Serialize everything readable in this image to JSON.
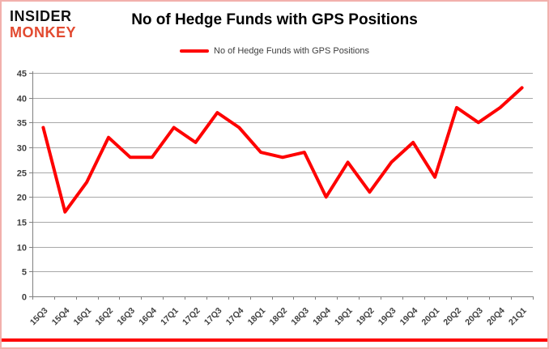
{
  "header": {
    "logo_line1": "INSIDER",
    "logo_line2": "MONKEY",
    "title": "No of Hedge Funds with GPS Positions"
  },
  "legend": {
    "label": "No of Hedge Funds with GPS Positions",
    "swatch_color": "#fe0000"
  },
  "chart_data": {
    "type": "line",
    "title": "No of Hedge Funds with GPS Positions",
    "categories": [
      "15Q3",
      "15Q4",
      "16Q1",
      "16Q2",
      "16Q3",
      "16Q4",
      "17Q1",
      "17Q2",
      "17Q3",
      "17Q4",
      "18Q1",
      "18Q2",
      "18Q3",
      "18Q4",
      "19Q1",
      "19Q2",
      "19Q3",
      "19Q4",
      "20Q1",
      "20Q2",
      "20Q3",
      "20Q4",
      "21Q1"
    ],
    "series": [
      {
        "name": "No of Hedge Funds with GPS Positions",
        "color": "#fe0000",
        "values": [
          34,
          17,
          23,
          32,
          28,
          28,
          34,
          31,
          37,
          34,
          29,
          28,
          29,
          20,
          27,
          21,
          27,
          31,
          24,
          38,
          35,
          38,
          42
        ]
      }
    ],
    "xlabel": "",
    "ylabel": "",
    "ylim": [
      0,
      45
    ],
    "ytick_step": 5,
    "grid": true,
    "legend_position": "top"
  },
  "colors": {
    "line": "#fe0000",
    "gridline": "#a8a8a8",
    "axis": "#808080",
    "tick_label": "#3f3f3f",
    "logo_accent": "#e2492f",
    "bottom_bar": "#fe0000",
    "frame_border": "#f2b0ac"
  }
}
